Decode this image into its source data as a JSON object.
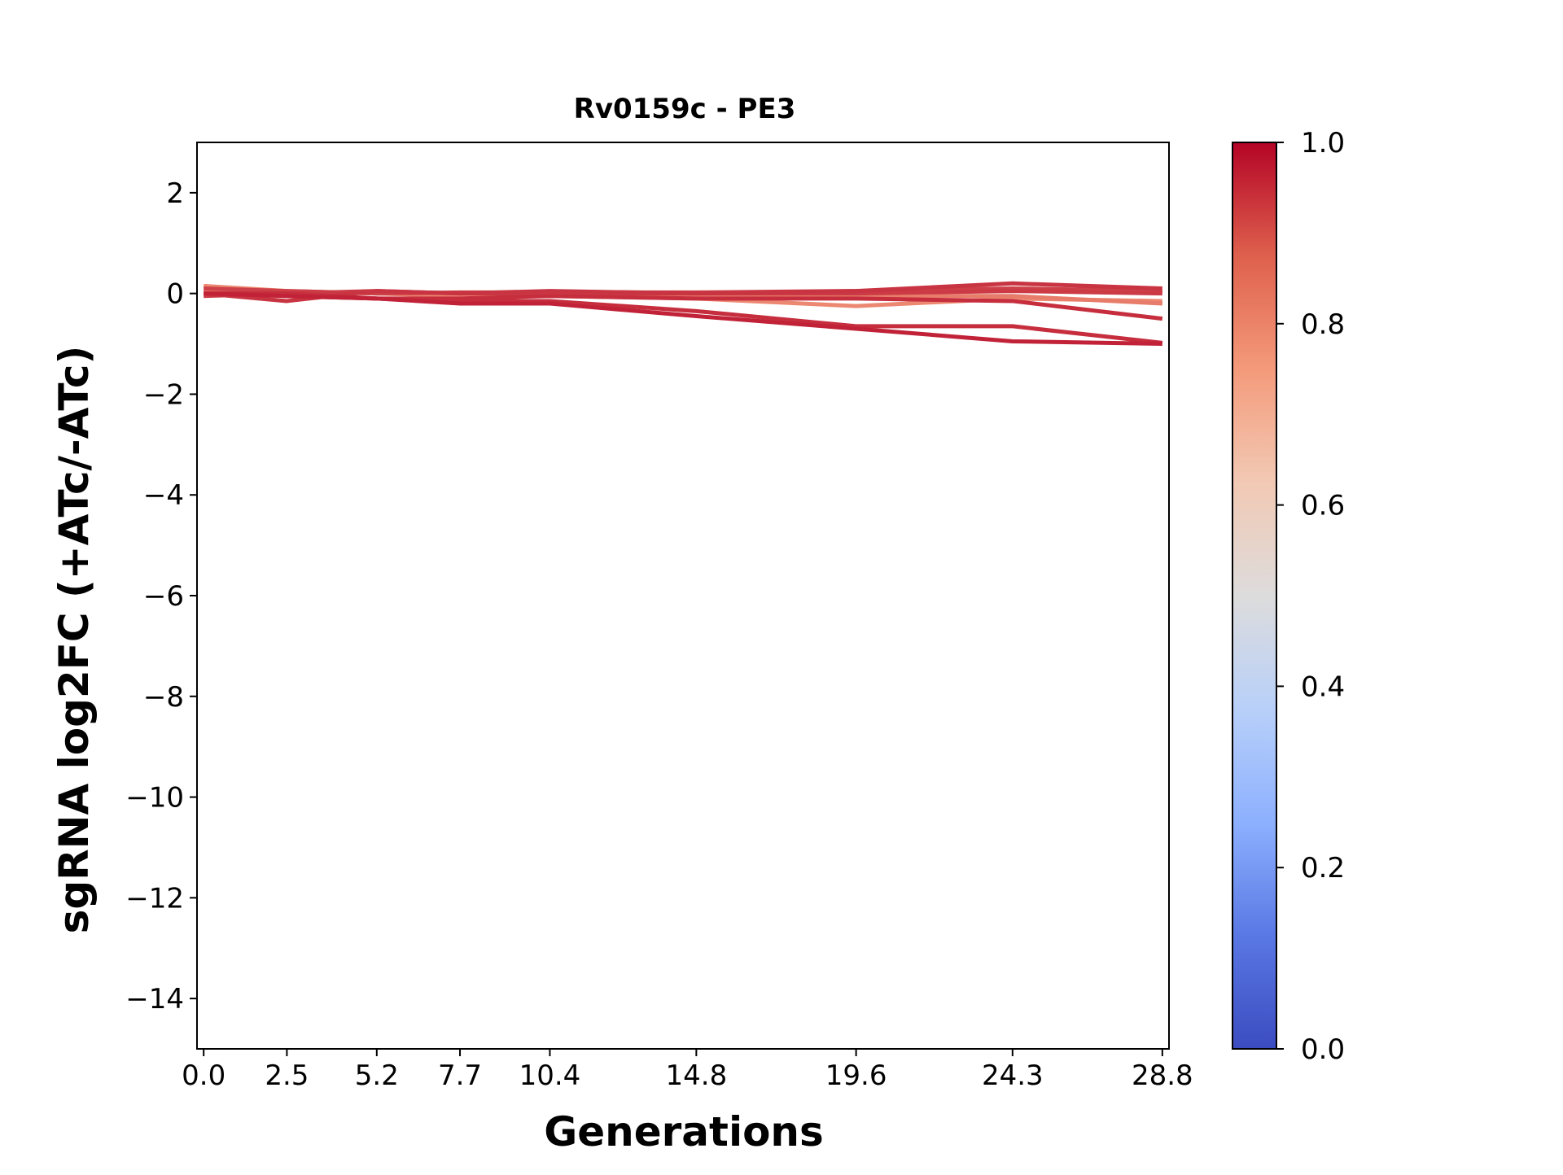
{
  "chart_data": {
    "type": "line",
    "title": "Rv0159c - PE3",
    "xlabel": "Generations",
    "ylabel": "sgRNA log2FC (+ATc/-ATc)",
    "x": [
      0.0,
      2.5,
      5.2,
      7.7,
      10.4,
      14.8,
      19.6,
      24.3,
      28.8
    ],
    "x_tick_labels": [
      "0.0",
      "2.5",
      "5.2",
      "7.7",
      "10.4",
      "14.8",
      "19.6",
      "24.3",
      "28.8"
    ],
    "xlim": [
      -0.2,
      29.0
    ],
    "ylim": [
      -15,
      3
    ],
    "y_ticks": [
      2,
      0,
      -2,
      -4,
      -6,
      -8,
      -10,
      -12,
      -14
    ],
    "y_tick_labels": [
      "2",
      "0",
      "−2",
      "−4",
      "−6",
      "−8",
      "−10",
      "−12",
      "−14"
    ],
    "grid": false,
    "colormap": "coolwarm",
    "colorbar": {
      "range": [
        0.0,
        1.0
      ],
      "tick_labels": [
        "0.0",
        "0.2",
        "0.4",
        "0.6",
        "0.8",
        "1.0"
      ],
      "ticks": [
        0.0,
        0.2,
        0.4,
        0.6,
        0.8,
        1.0
      ],
      "position": "right"
    },
    "series": [
      {
        "color_value": 0.78,
        "values": [
          0.15,
          0.05,
          0.0,
          -0.05,
          -0.05,
          -0.1,
          -0.25,
          -0.1,
          -0.15
        ]
      },
      {
        "color_value": 0.8,
        "values": [
          0.05,
          0.03,
          0.0,
          0.0,
          0.0,
          -0.05,
          -0.05,
          -0.05,
          -0.2
        ]
      },
      {
        "color_value": 0.9,
        "values": [
          0.1,
          0.05,
          0.0,
          0.02,
          0.02,
          0.02,
          0.05,
          0.1,
          0.05
        ]
      },
      {
        "color_value": 0.91,
        "values": [
          -0.05,
          0.0,
          0.05,
          0.0,
          0.0,
          0.0,
          0.0,
          0.05,
          0.0
        ]
      },
      {
        "color_value": 0.92,
        "values": [
          0.0,
          -0.15,
          0.05,
          0.0,
          0.05,
          0.0,
          0.05,
          0.2,
          0.1
        ]
      },
      {
        "color_value": 0.93,
        "values": [
          0.0,
          -0.05,
          -0.1,
          -0.1,
          -0.05,
          -0.1,
          -0.1,
          -0.15,
          -0.5
        ]
      },
      {
        "color_value": 0.93,
        "values": [
          0.0,
          0.0,
          -0.1,
          -0.15,
          -0.15,
          -0.35,
          -0.65,
          -0.65,
          -0.98
        ]
      },
      {
        "color_value": 0.95,
        "values": [
          0.0,
          -0.05,
          -0.1,
          -0.2,
          -0.2,
          -0.45,
          -0.7,
          -0.95,
          -1.0
        ]
      }
    ]
  }
}
